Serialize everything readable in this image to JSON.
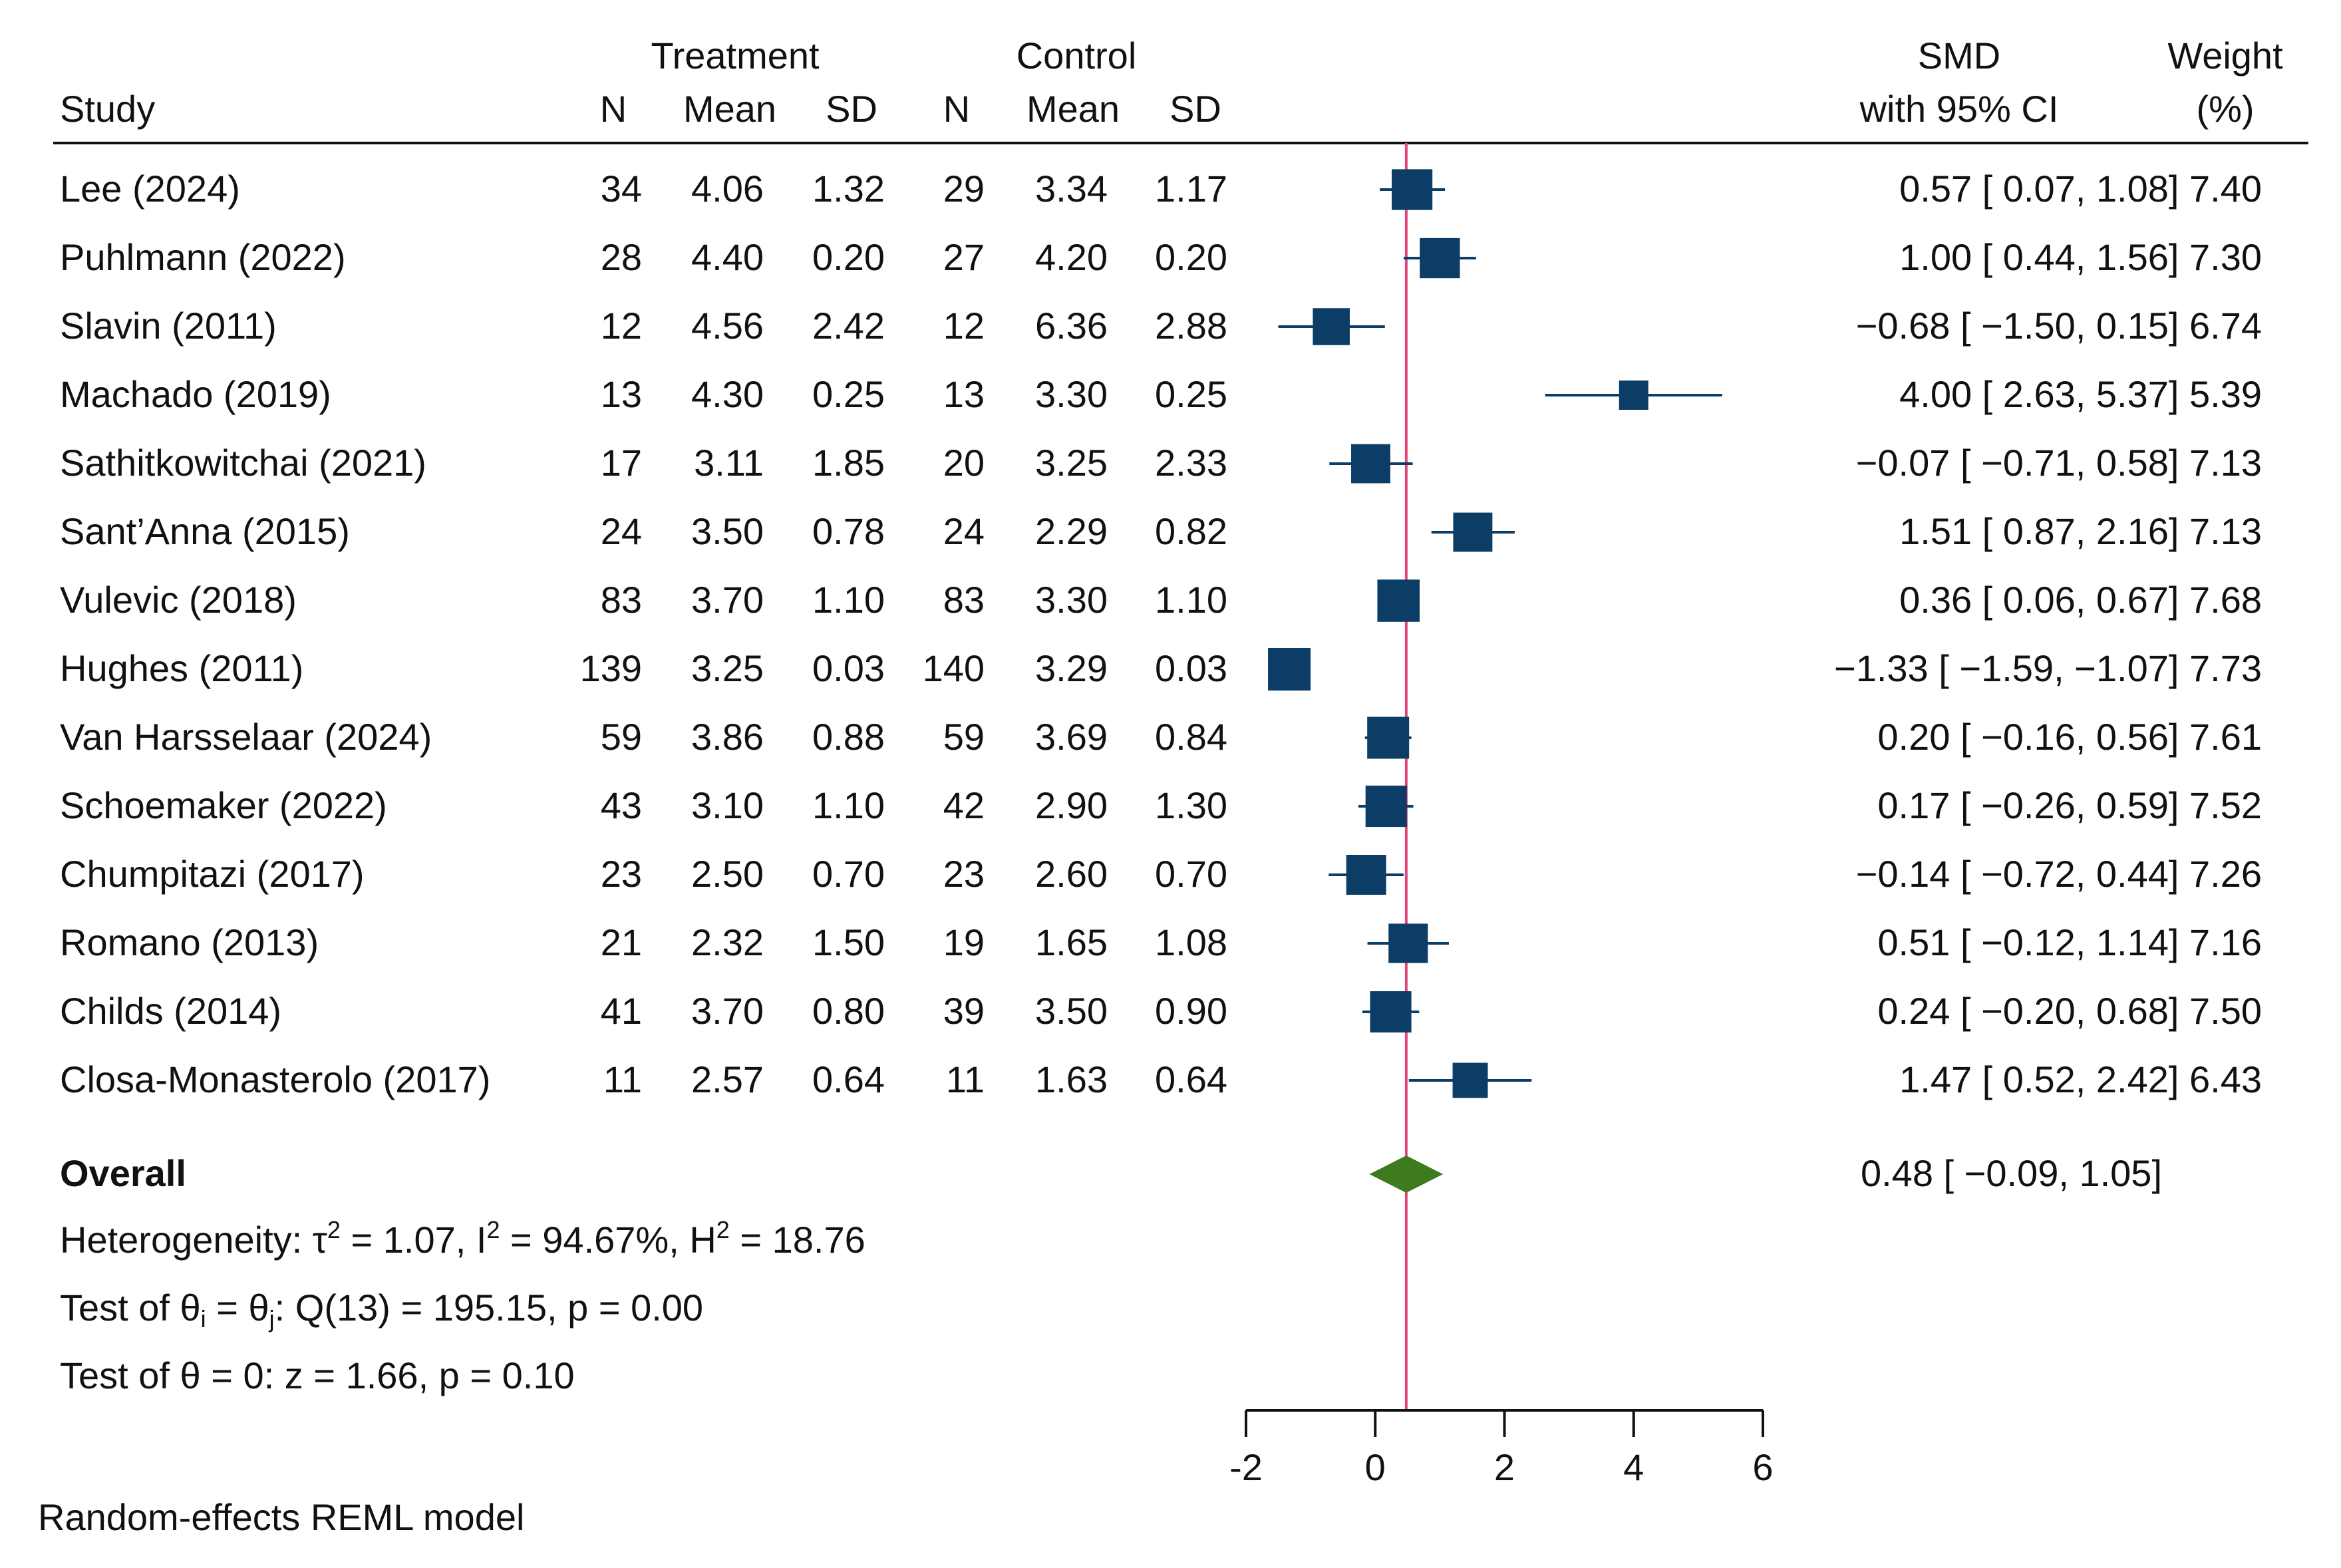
{
  "chart_data": {
    "type": "forest",
    "headers": {
      "study": "Study",
      "treatment": "Treatment",
      "control": "Control",
      "n": "N",
      "mean": "Mean",
      "sd": "SD",
      "smd": "SMD",
      "smd_sub": "with 95% CI",
      "weight": "Weight",
      "weight_sub": "(%)"
    },
    "studies": [
      {
        "name": "Lee (2024)",
        "t_n": "34",
        "t_mean": "4.06",
        "t_sd": "1.32",
        "c_n": "29",
        "c_mean": "3.34",
        "c_sd": "1.17",
        "smd": 0.57,
        "lo": 0.07,
        "hi": 1.08,
        "weight": 7.4,
        "ci_text": "0.57 [  0.07,   1.08] 7.40"
      },
      {
        "name": "Puhlmann (2022)",
        "t_n": "28",
        "t_mean": "4.40",
        "t_sd": "0.20",
        "c_n": "27",
        "c_mean": "4.20",
        "c_sd": "0.20",
        "smd": 1.0,
        "lo": 0.44,
        "hi": 1.56,
        "weight": 7.3,
        "ci_text": "1.00 [  0.44,   1.56] 7.30"
      },
      {
        "name": "Slavin (2011)",
        "t_n": "12",
        "t_mean": "4.56",
        "t_sd": "2.42",
        "c_n": "12",
        "c_mean": "6.36",
        "c_sd": "2.88",
        "smd": -0.68,
        "lo": -1.5,
        "hi": 0.15,
        "weight": 6.74,
        "ci_text": "−0.68 [ −1.50,   0.15] 6.74"
      },
      {
        "name": "Machado (2019)",
        "t_n": "13",
        "t_mean": "4.30",
        "t_sd": "0.25",
        "c_n": "13",
        "c_mean": "3.30",
        "c_sd": "0.25",
        "smd": 4.0,
        "lo": 2.63,
        "hi": 5.37,
        "weight": 5.39,
        "ci_text": "4.00 [  2.63,   5.37] 5.39"
      },
      {
        "name": "Sathitkowitchai (2021)",
        "t_n": "17",
        "t_mean": "3.11",
        "t_sd": "1.85",
        "c_n": "20",
        "c_mean": "3.25",
        "c_sd": "2.33",
        "smd": -0.07,
        "lo": -0.71,
        "hi": 0.58,
        "weight": 7.13,
        "ci_text": "−0.07 [ −0.71,   0.58] 7.13"
      },
      {
        "name": "Sant’Anna (2015)",
        "t_n": "24",
        "t_mean": "3.50",
        "t_sd": "0.78",
        "c_n": "24",
        "c_mean": "2.29",
        "c_sd": "0.82",
        "smd": 1.51,
        "lo": 0.87,
        "hi": 2.16,
        "weight": 7.13,
        "ci_text": "1.51 [  0.87,   2.16] 7.13"
      },
      {
        "name": "Vulevic (2018)",
        "t_n": "83",
        "t_mean": "3.70",
        "t_sd": "1.10",
        "c_n": "83",
        "c_mean": "3.30",
        "c_sd": "1.10",
        "smd": 0.36,
        "lo": 0.06,
        "hi": 0.67,
        "weight": 7.68,
        "ci_text": "0.36 [  0.06,   0.67] 7.68"
      },
      {
        "name": "Hughes (2011)",
        "t_n": "139",
        "t_mean": "3.25",
        "t_sd": "0.03",
        "c_n": "140",
        "c_mean": "3.29",
        "c_sd": "0.03",
        "smd": -1.33,
        "lo": -1.59,
        "hi": -1.07,
        "weight": 7.73,
        "ci_text": "−1.33 [ −1.59, −1.07] 7.73"
      },
      {
        "name": "Van Harsselaar (2024)",
        "t_n": "59",
        "t_mean": "3.86",
        "t_sd": "0.88",
        "c_n": "59",
        "c_mean": "3.69",
        "c_sd": "0.84",
        "smd": 0.2,
        "lo": -0.16,
        "hi": 0.56,
        "weight": 7.61,
        "ci_text": "0.20 [ −0.16,   0.56] 7.61"
      },
      {
        "name": "Schoemaker (2022)",
        "t_n": "43",
        "t_mean": "3.10",
        "t_sd": "1.10",
        "c_n": "42",
        "c_mean": "2.90",
        "c_sd": "1.30",
        "smd": 0.17,
        "lo": -0.26,
        "hi": 0.59,
        "weight": 7.52,
        "ci_text": "0.17 [ −0.26,   0.59] 7.52"
      },
      {
        "name": "Chumpitazi (2017)",
        "t_n": "23",
        "t_mean": "2.50",
        "t_sd": "0.70",
        "c_n": "23",
        "c_mean": "2.60",
        "c_sd": "0.70",
        "smd": -0.14,
        "lo": -0.72,
        "hi": 0.44,
        "weight": 7.26,
        "ci_text": "−0.14 [ −0.72,   0.44] 7.26"
      },
      {
        "name": "Romano (2013)",
        "t_n": "21",
        "t_mean": "2.32",
        "t_sd": "1.50",
        "c_n": "19",
        "c_mean": "1.65",
        "c_sd": "1.08",
        "smd": 0.51,
        "lo": -0.12,
        "hi": 1.14,
        "weight": 7.16,
        "ci_text": "0.51 [ −0.12,   1.14] 7.16"
      },
      {
        "name": "Childs (2014)",
        "t_n": "41",
        "t_mean": "3.70",
        "t_sd": "0.80",
        "c_n": "39",
        "c_mean": "3.50",
        "c_sd": "0.90",
        "smd": 0.24,
        "lo": -0.2,
        "hi": 0.68,
        "weight": 7.5,
        "ci_text": "0.24 [ −0.20,   0.68] 7.50"
      },
      {
        "name": "Closa-Monasterolo (2017)",
        "t_n": "11",
        "t_mean": "2.57",
        "t_sd": "0.64",
        "c_n": "11",
        "c_mean": "1.63",
        "c_sd": "0.64",
        "smd": 1.47,
        "lo": 0.52,
        "hi": 2.42,
        "weight": 6.43,
        "ci_text": "1.47 [  0.52,   2.42] 6.43"
      }
    ],
    "overall": {
      "label": "Overall",
      "smd": 0.48,
      "lo": -0.09,
      "hi": 1.05,
      "ci_text": "0.48 [ −0.09,   1.05]"
    },
    "heterogeneity": {
      "prefix": "Heterogeneity: τ",
      "tau_sup": "2",
      "tau_val": " = 1.07, I",
      "i_sup": "2",
      "i_val": " = 94.67%, H",
      "h_sup": "2",
      "h_val": " = 18.76"
    },
    "test_q": {
      "prefix": "Test of θ",
      "sub_i": "i",
      "mid": " = θ",
      "sub_j": "j",
      "suffix": ": Q(13) = 195.15, p = 0.00"
    },
    "test_z": "Test of θ = 0: z = 1.66, p = 0.10",
    "footnote": "Random-effects REML model",
    "x_axis": {
      "ticks": [
        -2,
        0,
        2,
        4,
        6
      ],
      "tick_labels": [
        "-2",
        "0",
        "2",
        "4",
        "6"
      ],
      "range": [
        -2,
        6
      ]
    },
    "reference_line": 0.48,
    "colors": {
      "marker": "#0b3d66",
      "overall": "#3e7a1e",
      "ref_line": "#e0457b",
      "text": "#111111"
    }
  }
}
